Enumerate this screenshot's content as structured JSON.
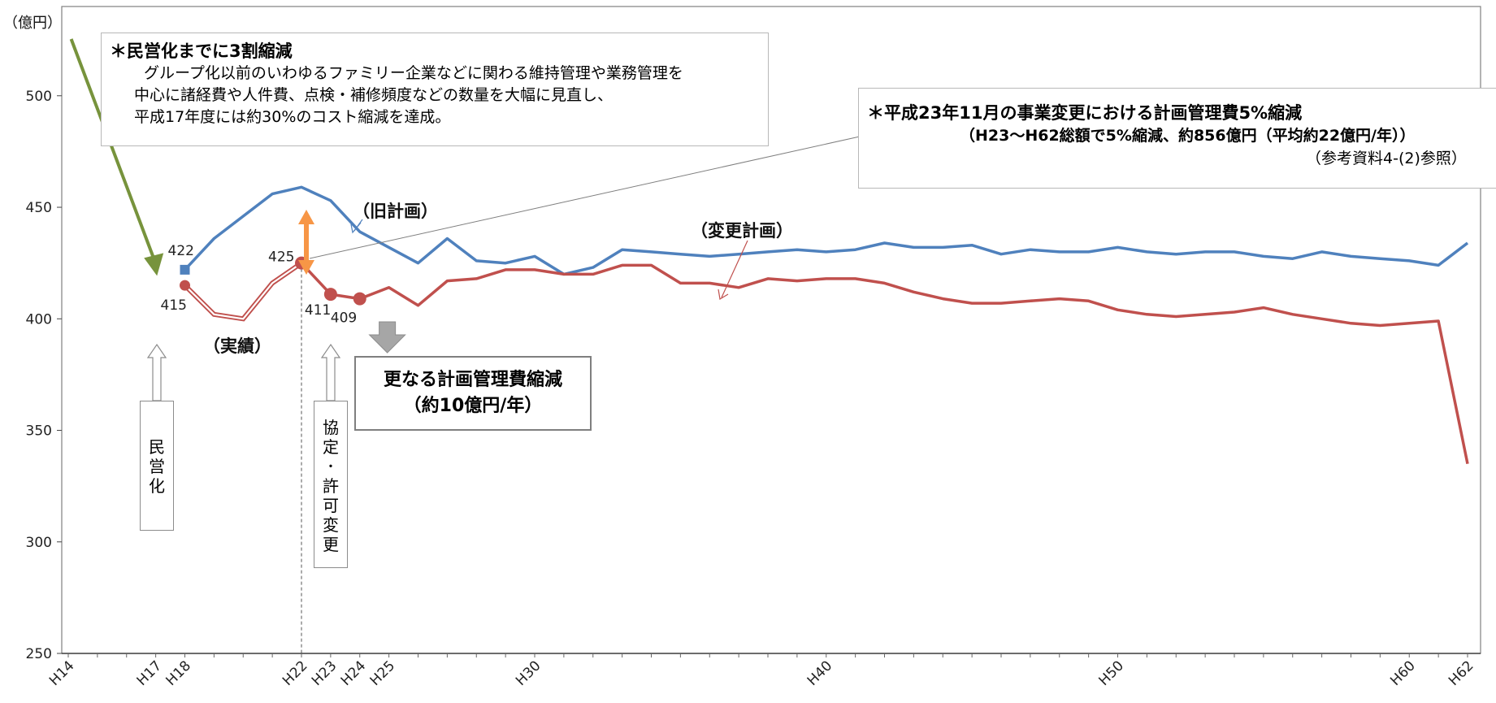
{
  "chart_data": {
    "type": "line",
    "ylabel": "（億円）",
    "ylim": [
      250,
      540
    ],
    "yticks": [
      250,
      300,
      350,
      400,
      450,
      500
    ],
    "xlim": [
      14,
      62.5
    ],
    "xticks": [
      {
        "x": 14,
        "label": "H14"
      },
      {
        "x": 17,
        "label": "H17"
      },
      {
        "x": 18,
        "label": "H18"
      },
      {
        "x": 22,
        "label": "H22"
      },
      {
        "x": 23,
        "label": "H23"
      },
      {
        "x": 24,
        "label": "H24"
      },
      {
        "x": 25,
        "label": "H25"
      },
      {
        "x": 30,
        "label": "H30"
      },
      {
        "x": 40,
        "label": "H40"
      },
      {
        "x": 50,
        "label": "H50"
      },
      {
        "x": 60,
        "label": "H60"
      },
      {
        "x": 62,
        "label": "H62"
      }
    ],
    "series": [
      {
        "name": "（旧計画）",
        "color": "#4f81bd",
        "points": [
          [
            18,
            422
          ],
          [
            19,
            436
          ],
          [
            20,
            446
          ],
          [
            21,
            456
          ],
          [
            22,
            459
          ],
          [
            23,
            453
          ],
          [
            24,
            439
          ],
          [
            25,
            432
          ],
          [
            26,
            425
          ],
          [
            27,
            436
          ],
          [
            28,
            426
          ],
          [
            29,
            425
          ],
          [
            30,
            428
          ],
          [
            31,
            420
          ],
          [
            32,
            423
          ],
          [
            33,
            431
          ],
          [
            34,
            430
          ],
          [
            35,
            429
          ],
          [
            36,
            428
          ],
          [
            37,
            429
          ],
          [
            38,
            430
          ],
          [
            39,
            431
          ],
          [
            40,
            430
          ],
          [
            41,
            431
          ],
          [
            42,
            434
          ],
          [
            43,
            432
          ],
          [
            44,
            432
          ],
          [
            45,
            433
          ],
          [
            46,
            429
          ],
          [
            47,
            431
          ],
          [
            48,
            430
          ],
          [
            49,
            430
          ],
          [
            50,
            432
          ],
          [
            51,
            430
          ],
          [
            52,
            429
          ],
          [
            53,
            430
          ],
          [
            54,
            430
          ],
          [
            55,
            428
          ],
          [
            56,
            427
          ],
          [
            57,
            430
          ],
          [
            58,
            428
          ],
          [
            59,
            427
          ],
          [
            60,
            426
          ],
          [
            61,
            424
          ],
          [
            62,
            434
          ]
        ]
      },
      {
        "name": "（変更計画）",
        "color": "#c0504d",
        "points": [
          [
            22,
            425
          ],
          [
            23,
            411
          ],
          [
            24,
            409
          ],
          [
            25,
            414
          ],
          [
            26,
            406
          ],
          [
            27,
            417
          ],
          [
            28,
            418
          ],
          [
            29,
            422
          ],
          [
            30,
            422
          ],
          [
            31,
            420
          ],
          [
            32,
            420
          ],
          [
            33,
            424
          ],
          [
            34,
            424
          ],
          [
            35,
            416
          ],
          [
            36,
            416
          ],
          [
            37,
            414
          ],
          [
            38,
            418
          ],
          [
            39,
            417
          ],
          [
            40,
            418
          ],
          [
            41,
            418
          ],
          [
            42,
            416
          ],
          [
            43,
            412
          ],
          [
            44,
            409
          ],
          [
            45,
            407
          ],
          [
            46,
            407
          ],
          [
            47,
            408
          ],
          [
            48,
            409
          ],
          [
            49,
            408
          ],
          [
            50,
            404
          ],
          [
            51,
            402
          ],
          [
            52,
            401
          ],
          [
            53,
            402
          ],
          [
            54,
            403
          ],
          [
            55,
            405
          ],
          [
            56,
            402
          ],
          [
            57,
            400
          ],
          [
            58,
            398
          ],
          [
            59,
            397
          ],
          [
            60,
            398
          ],
          [
            61,
            399
          ],
          [
            62,
            335
          ]
        ]
      },
      {
        "name": "（実績）",
        "color": "#c0504d",
        "style": "double",
        "points": [
          [
            18,
            415
          ],
          [
            19,
            402
          ],
          [
            20,
            400
          ],
          [
            21,
            416
          ],
          [
            22,
            425
          ]
        ]
      }
    ],
    "point_labels": [
      {
        "x": 18,
        "y": 422,
        "text": "422"
      },
      {
        "x": 18,
        "y": 415,
        "text": "415"
      },
      {
        "x": 22,
        "y": 425,
        "text": "425"
      },
      {
        "x": 23,
        "y": 411,
        "text": "411"
      },
      {
        "x": 24,
        "y": 409,
        "text": "409"
      }
    ]
  },
  "labels": {
    "old_plan": "（旧計画）",
    "new_plan": "（変更計画）",
    "actual": "（実績）"
  },
  "box1": {
    "title": "＊民営化までに3割縮減",
    "line1": "グループ化以前のいわゆるファミリー企業などに関わる維持管理や業務管理を",
    "line2": "中心に諸経費や人件費、点検・補修頻度などの数量を大幅に見直し、",
    "line3": "平成17年度には約30%のコスト縮減を達成。"
  },
  "box2": {
    "title": "＊平成23年11月の事業変更における計画管理費5%縮減",
    "line1": "（H23～H62総額で5%縮減、約856億円（平均約22億円/年））",
    "line2": "（参考資料4-(2)参照）"
  },
  "box3": {
    "line1": "更なる計画管理費縮減",
    "line2": "（約10億円/年）"
  },
  "vbox1": [
    "民",
    "営",
    "化"
  ],
  "vbox2": [
    "協",
    "定",
    "･",
    "許",
    "可",
    "変",
    "更"
  ]
}
